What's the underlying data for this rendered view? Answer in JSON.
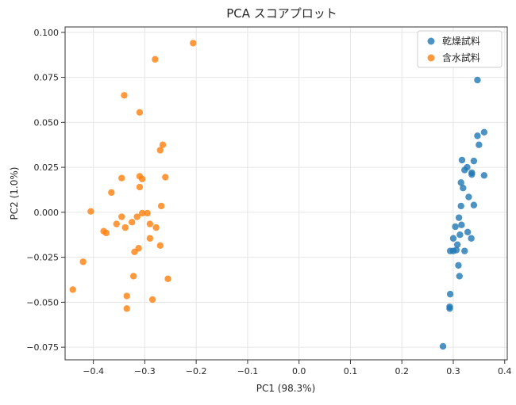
{
  "chart_data": {
    "type": "scatter",
    "title": "PCA スコアプロット",
    "xlabel": "PC1 (98.3%)",
    "ylabel": "PC2 (1.0%)",
    "xlim": [
      -0.455,
      0.405
    ],
    "ylim": [
      -0.082,
      0.103
    ],
    "xticks": [
      -0.4,
      -0.3,
      -0.2,
      -0.1,
      0.0,
      0.1,
      0.2,
      0.3,
      0.4
    ],
    "xtick_labels": [
      "−0.4",
      "−0.3",
      "−0.2",
      "−0.1",
      "0.0",
      "0.1",
      "0.2",
      "0.3",
      "0.4"
    ],
    "yticks": [
      -0.075,
      -0.05,
      -0.025,
      0.0,
      0.025,
      0.05,
      0.075,
      0.1
    ],
    "ytick_labels": [
      "−0.075",
      "−0.050",
      "−0.025",
      "0.000",
      "0.025",
      "0.050",
      "0.075",
      "0.100"
    ],
    "grid": true,
    "legend_position": "top-right",
    "series": [
      {
        "name": "乾燥試料",
        "color": "#1f77b4",
        "points": [
          [
            0.347,
            0.0735
          ],
          [
            0.36,
            0.0445
          ],
          [
            0.347,
            0.0425
          ],
          [
            0.35,
            0.0375
          ],
          [
            0.317,
            0.029
          ],
          [
            0.34,
            0.0285
          ],
          [
            0.327,
            0.025
          ],
          [
            0.322,
            0.0235
          ],
          [
            0.336,
            0.022
          ],
          [
            0.336,
            0.021
          ],
          [
            0.36,
            0.0205
          ],
          [
            0.315,
            0.0165
          ],
          [
            0.319,
            0.0135
          ],
          [
            0.33,
            0.0085
          ],
          [
            0.34,
            0.004
          ],
          [
            0.315,
            0.0035
          ],
          [
            0.311,
            -0.003
          ],
          [
            0.316,
            -0.007
          ],
          [
            0.304,
            -0.008
          ],
          [
            0.328,
            -0.011
          ],
          [
            0.313,
            -0.0125
          ],
          [
            0.335,
            -0.0145
          ],
          [
            0.3,
            -0.0145
          ],
          [
            0.308,
            -0.018
          ],
          [
            0.306,
            -0.021
          ],
          [
            0.3,
            -0.0215
          ],
          [
            0.322,
            -0.0215
          ],
          [
            0.294,
            -0.0215
          ],
          [
            0.31,
            -0.0295
          ],
          [
            0.312,
            -0.0355
          ],
          [
            0.294,
            -0.0455
          ],
          [
            0.293,
            -0.0525
          ],
          [
            0.293,
            -0.0535
          ],
          [
            0.28,
            -0.0745
          ]
        ]
      },
      {
        "name": "含水試料",
        "color": "#ff7f0e",
        "points": [
          [
            -0.206,
            0.094
          ],
          [
            -0.28,
            0.085
          ],
          [
            -0.34,
            0.065
          ],
          [
            -0.31,
            0.0555
          ],
          [
            -0.265,
            0.0375
          ],
          [
            -0.27,
            0.0345
          ],
          [
            -0.31,
            0.02
          ],
          [
            -0.26,
            0.0195
          ],
          [
            -0.345,
            0.019
          ],
          [
            -0.305,
            0.0185
          ],
          [
            -0.31,
            0.014
          ],
          [
            -0.365,
            0.011
          ],
          [
            -0.268,
            0.0035
          ],
          [
            -0.405,
            0.0005
          ],
          [
            -0.305,
            -0.0005
          ],
          [
            -0.295,
            -0.0005
          ],
          [
            -0.345,
            -0.0025
          ],
          [
            -0.315,
            -0.0025
          ],
          [
            -0.325,
            -0.0055
          ],
          [
            -0.355,
            -0.0065
          ],
          [
            -0.29,
            -0.0065
          ],
          [
            -0.338,
            -0.0085
          ],
          [
            -0.278,
            -0.0085
          ],
          [
            -0.38,
            -0.0105
          ],
          [
            -0.375,
            -0.0115
          ],
          [
            -0.29,
            -0.0145
          ],
          [
            -0.27,
            -0.0185
          ],
          [
            -0.312,
            -0.02
          ],
          [
            -0.32,
            -0.022
          ],
          [
            -0.42,
            -0.0275
          ],
          [
            -0.322,
            -0.0355
          ],
          [
            -0.255,
            -0.037
          ],
          [
            -0.44,
            -0.043
          ],
          [
            -0.335,
            -0.0465
          ],
          [
            -0.285,
            -0.0485
          ],
          [
            -0.335,
            -0.0535
          ]
        ]
      }
    ]
  }
}
